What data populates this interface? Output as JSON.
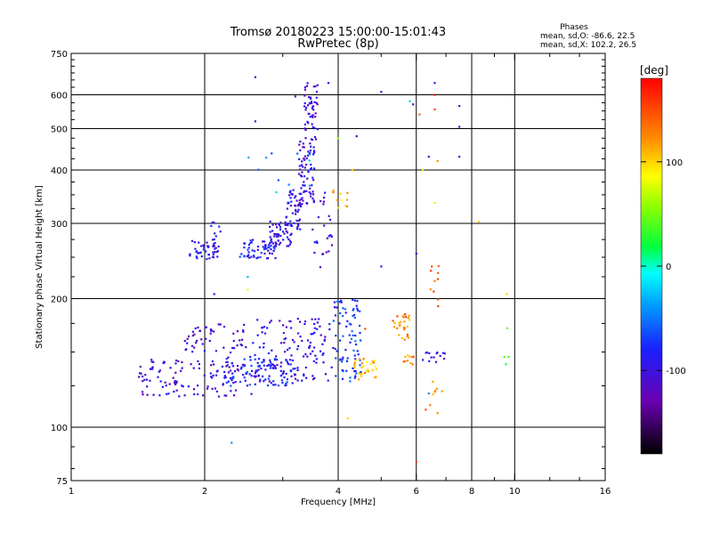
{
  "chart_data": {
    "type": "scatter",
    "title": "Tromsø 20180223 15:00:00-15:01:43",
    "subtitle": "RwPretec (8p)",
    "xlabel": "Frequency [MHz]",
    "ylabel": "Stationary phase Virtual Height [km]",
    "x_scale": "log",
    "y_scale": "log",
    "xlim": [
      1,
      16
    ],
    "ylim": [
      75,
      750
    ],
    "x_ticks": [
      1,
      2,
      4,
      6,
      8,
      10,
      16
    ],
    "x_tick_labels": [
      "1",
      "2",
      "4",
      "6",
      "8",
      "10",
      "16"
    ],
    "y_ticks": [
      75,
      100,
      200,
      300,
      400,
      500,
      600,
      750
    ],
    "y_tick_labels": [
      "75",
      "100",
      "200",
      "300",
      "400",
      "500",
      "600",
      "750"
    ],
    "x_gridlines": [
      2,
      4,
      6,
      8,
      10
    ],
    "y_gridlines": [
      100,
      200,
      300,
      400,
      500,
      600
    ],
    "stats": {
      "heading": "Phases",
      "line_o": "mean, sd,O: -86.6, 22.5",
      "line_x": "mean, sd,X: 102.2, 26.5"
    },
    "colorbar": {
      "label": "[deg]",
      "range": [
        -180,
        180
      ],
      "ticks": [
        100,
        0,
        -100
      ],
      "tick_labels": [
        "100",
        "0",
        "-100"
      ]
    },
    "clusters": [
      {
        "f": [
          1.85,
          2.15
        ],
        "h": [
          245,
          275
        ],
        "phase": -95,
        "n": 45
      },
      {
        "f": [
          2.05,
          2.2
        ],
        "h": [
          275,
          315
        ],
        "phase": -95,
        "n": 8
      },
      {
        "f": [
          2.4,
          2.9
        ],
        "h": [
          248,
          275
        ],
        "phase": -90,
        "n": 60
      },
      {
        "f": [
          2.8,
          3.15
        ],
        "h": [
          265,
          305
        ],
        "phase": -95,
        "n": 55
      },
      {
        "f": [
          3.05,
          3.3
        ],
        "h": [
          290,
          360
        ],
        "phase": -100,
        "n": 45
      },
      {
        "f": [
          3.25,
          3.55
        ],
        "h": [
          330,
          480
        ],
        "phase": -100,
        "n": 70
      },
      {
        "f": [
          3.35,
          3.6
        ],
        "h": [
          470,
          640
        ],
        "phase": -105,
        "n": 50
      },
      {
        "f": [
          3.5,
          3.9
        ],
        "h": [
          230,
          360
        ],
        "phase": -100,
        "n": 25
      },
      {
        "f": [
          1.42,
          1.8
        ],
        "h": [
          118,
          145
        ],
        "phase": -105,
        "n": 55
      },
      {
        "f": [
          1.8,
          2.6
        ],
        "h": [
          118,
          175
        ],
        "phase": -105,
        "n": 110
      },
      {
        "f": [
          2.2,
          3.2
        ],
        "h": [
          125,
          145
        ],
        "phase": -80,
        "n": 100
      },
      {
        "f": [
          2.6,
          3.9
        ],
        "h": [
          128,
          180
        ],
        "phase": -100,
        "n": 120
      },
      {
        "f": [
          3.9,
          4.5
        ],
        "h": [
          128,
          200
        ],
        "phase": -75,
        "n": 80
      },
      {
        "f": [
          4.3,
          4.9
        ],
        "h": [
          128,
          145
        ],
        "phase": 110,
        "n": 30
      },
      {
        "f": [
          5.3,
          5.8
        ],
        "h": [
          160,
          185
        ],
        "phase": 125,
        "n": 28
      },
      {
        "f": [
          5.6,
          6.0
        ],
        "h": [
          140,
          148
        ],
        "phase": 120,
        "n": 10
      },
      {
        "f": [
          6.2,
          7.0
        ],
        "h": [
          142,
          150
        ],
        "phase": -100,
        "n": 14
      },
      {
        "f": [
          2.4,
          3.5
        ],
        "h": [
          360,
          440
        ],
        "phase": -40,
        "n": 10
      },
      {
        "f": [
          3.8,
          4.2
        ],
        "h": [
          320,
          360
        ],
        "phase": 110,
        "n": 10
      },
      {
        "f": [
          6.4,
          6.9
        ],
        "h": [
          190,
          240
        ],
        "phase": 140,
        "n": 8
      },
      {
        "f": [
          6.3,
          6.9
        ],
        "h": [
          110,
          130
        ],
        "phase": 120,
        "n": 6
      },
      {
        "f": [
          9.3,
          9.7
        ],
        "h": [
          140,
          180
        ],
        "phase": 40,
        "n": 4
      }
    ],
    "points": [
      {
        "f": 2.6,
        "h": 660,
        "phase": -100
      },
      {
        "f": 3.2,
        "h": 595,
        "phase": -110
      },
      {
        "f": 2.6,
        "h": 520,
        "phase": -100
      },
      {
        "f": 3.8,
        "h": 640,
        "phase": -90
      },
      {
        "f": 5.0,
        "h": 610,
        "phase": -110
      },
      {
        "f": 6.6,
        "h": 640,
        "phase": -105
      },
      {
        "f": 6.6,
        "h": 600,
        "phase": 170
      },
      {
        "f": 5.8,
        "h": 580,
        "phase": -20
      },
      {
        "f": 5.9,
        "h": 570,
        "phase": -100
      },
      {
        "f": 6.6,
        "h": 555,
        "phase": 150
      },
      {
        "f": 7.5,
        "h": 565,
        "phase": -110
      },
      {
        "f": 6.1,
        "h": 540,
        "phase": 140
      },
      {
        "f": 7.5,
        "h": 505,
        "phase": -110
      },
      {
        "f": 4.0,
        "h": 475,
        "phase": 60
      },
      {
        "f": 4.4,
        "h": 480,
        "phase": -110
      },
      {
        "f": 6.4,
        "h": 430,
        "phase": -110
      },
      {
        "f": 6.7,
        "h": 420,
        "phase": 120
      },
      {
        "f": 7.5,
        "h": 430,
        "phase": -110
      },
      {
        "f": 6.2,
        "h": 400,
        "phase": 80
      },
      {
        "f": 4.3,
        "h": 400,
        "phase": 100
      },
      {
        "f": 2.9,
        "h": 355,
        "phase": -20
      },
      {
        "f": 6.6,
        "h": 335,
        "phase": 90
      },
      {
        "f": 6.0,
        "h": 255,
        "phase": -100
      },
      {
        "f": 5.0,
        "h": 238,
        "phase": -110
      },
      {
        "f": 6.5,
        "h": 238,
        "phase": 150
      },
      {
        "f": 6.6,
        "h": 220,
        "phase": 130
      },
      {
        "f": 8.3,
        "h": 303,
        "phase": 100
      },
      {
        "f": 2.5,
        "h": 210,
        "phase": 80
      },
      {
        "f": 2.5,
        "h": 225,
        "phase": -30
      },
      {
        "f": 2.1,
        "h": 205,
        "phase": -100
      },
      {
        "f": 4.6,
        "h": 170,
        "phase": 150
      },
      {
        "f": 9.6,
        "h": 205,
        "phase": 100
      },
      {
        "f": 4.2,
        "h": 105,
        "phase": 100
      },
      {
        "f": 6.0,
        "h": 83,
        "phase": 150
      },
      {
        "f": 2.3,
        "h": 92,
        "phase": -40
      },
      {
        "f": 6.4,
        "h": 120,
        "phase": -40
      },
      {
        "f": 6.6,
        "h": 121,
        "phase": 120
      },
      {
        "f": 6.7,
        "h": 108,
        "phase": 120
      },
      {
        "f": 6.3,
        "h": 110,
        "phase": 150
      }
    ]
  }
}
